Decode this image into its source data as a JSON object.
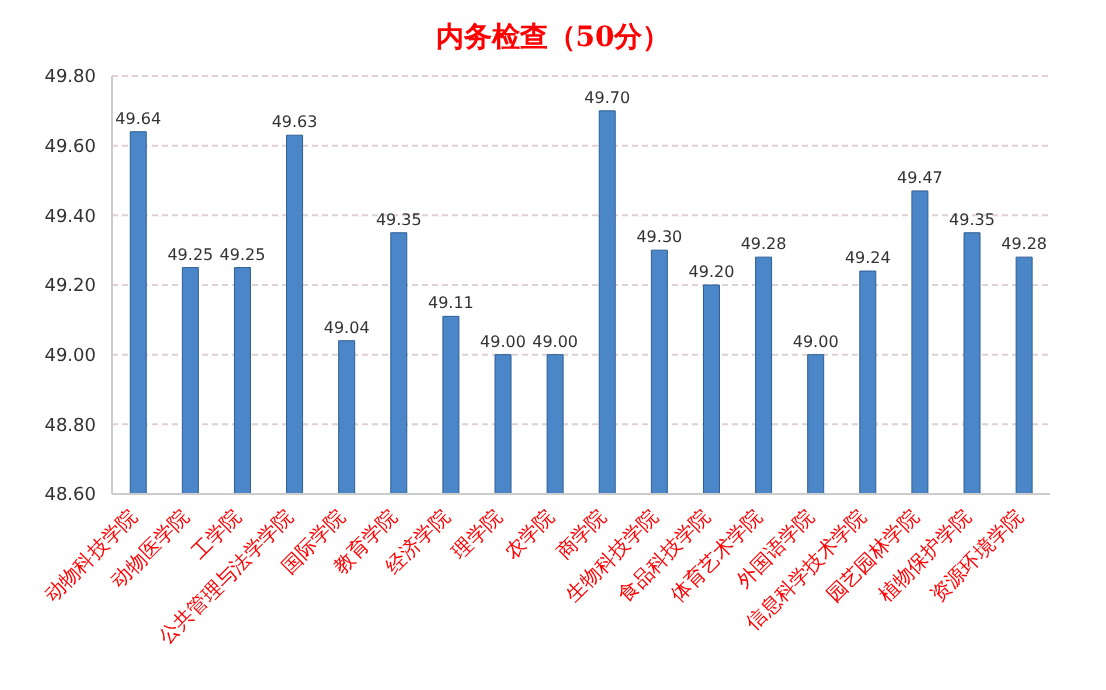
{
  "chart_data": {
    "type": "bar",
    "title": "内务检查（50分）",
    "categories": [
      "动物科技学院",
      "动物医学院",
      "工学院",
      "公共管理与法学学院",
      "国际学院",
      "教育学院",
      "经济学院",
      "理学院",
      "农学院",
      "商学院",
      "生物科技学院",
      "食品科技学院",
      "体育艺术学院",
      "外国语学院",
      "信息科学技术学院",
      "园艺园林学院",
      "植物保护学院",
      "资源环境学院"
    ],
    "values": [
      49.64,
      49.25,
      49.25,
      49.63,
      49.04,
      49.35,
      49.11,
      49.0,
      49.0,
      49.7,
      49.3,
      49.2,
      49.28,
      49.0,
      49.24,
      49.47,
      49.35,
      49.28
    ],
    "value_labels": [
      "49.64",
      "49.25",
      "49.25",
      "49.63",
      "49.04",
      "49.35",
      "49.11",
      "49.00",
      "49.00",
      "49.70",
      "49.30",
      "49.20",
      "49.28",
      "49.00",
      "49.24",
      "49.47",
      "49.35",
      "49.28"
    ],
    "color": "#4a86c8",
    "ylim": [
      48.6,
      49.8
    ],
    "yticks": [
      {
        "value": 48.6,
        "label": "48.60"
      },
      {
        "value": 48.8,
        "label": "48.80"
      },
      {
        "value": 49.0,
        "label": "49.00"
      },
      {
        "value": 49.2,
        "label": "49.20"
      },
      {
        "value": 49.4,
        "label": "49.40"
      },
      {
        "value": 49.6,
        "label": "49.60"
      },
      {
        "value": 49.8,
        "label": "49.80"
      }
    ],
    "grid": "y"
  }
}
